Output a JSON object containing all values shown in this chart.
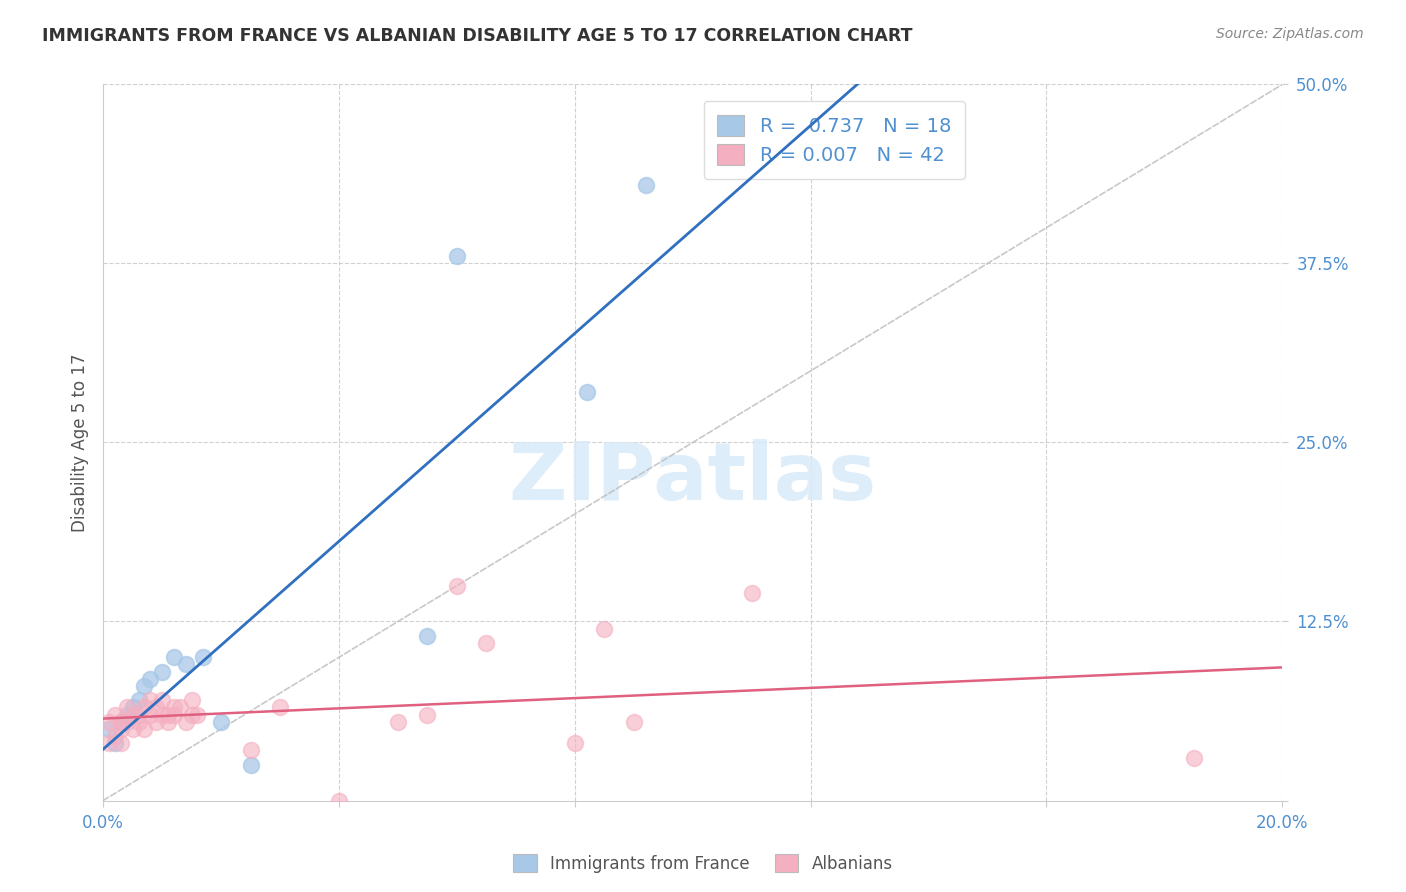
{
  "title": "IMMIGRANTS FROM FRANCE VS ALBANIAN DISABILITY AGE 5 TO 17 CORRELATION CHART",
  "source": "Source: ZipAtlas.com",
  "ylabel": "Disability Age 5 to 17",
  "xlim": [
    0,
    0.2
  ],
  "ylim": [
    0,
    0.5
  ],
  "legend1_r": "0.737",
  "legend1_n": "18",
  "legend2_r": "0.007",
  "legend2_n": "42",
  "france_color": "#a8c8e8",
  "albania_color": "#f4afc0",
  "france_line_color": "#3070c0",
  "albania_line_color": "#e06080",
  "ref_line_color": "#bbbbbb",
  "watermark_color": "#d8eaf8",
  "tick_color": "#5090d0",
  "grid_color": "#cccccc",
  "title_color": "#333333",
  "source_color": "#888888",
  "ylabel_color": "#555555",
  "background_color": "#ffffff",
  "france_x": [
    0.001,
    0.002,
    0.003,
    0.004,
    0.005,
    0.006,
    0.007,
    0.008,
    0.01,
    0.012,
    0.014,
    0.017,
    0.02,
    0.025,
    0.055,
    0.06,
    0.082,
    0.092
  ],
  "france_y": [
    0.05,
    0.04,
    0.055,
    0.06,
    0.065,
    0.07,
    0.08,
    0.085,
    0.09,
    0.1,
    0.095,
    0.1,
    0.055,
    0.025,
    0.115,
    0.38,
    0.285,
    0.43
  ],
  "albania_x": [
    0.001,
    0.001,
    0.002,
    0.002,
    0.003,
    0.003,
    0.003,
    0.004,
    0.004,
    0.005,
    0.005,
    0.006,
    0.006,
    0.007,
    0.007,
    0.008,
    0.008,
    0.009,
    0.009,
    0.01,
    0.01,
    0.011,
    0.011,
    0.012,
    0.012,
    0.013,
    0.014,
    0.015,
    0.015,
    0.016,
    0.025,
    0.03,
    0.04,
    0.05,
    0.055,
    0.06,
    0.065,
    0.08,
    0.085,
    0.09,
    0.11,
    0.185
  ],
  "albania_y": [
    0.055,
    0.04,
    0.06,
    0.045,
    0.055,
    0.05,
    0.04,
    0.065,
    0.055,
    0.06,
    0.05,
    0.06,
    0.055,
    0.065,
    0.05,
    0.07,
    0.06,
    0.065,
    0.055,
    0.07,
    0.06,
    0.06,
    0.055,
    0.065,
    0.06,
    0.065,
    0.055,
    0.07,
    0.06,
    0.06,
    0.035,
    0.065,
    0.0,
    0.055,
    0.06,
    0.15,
    0.11,
    0.04,
    0.12,
    0.055,
    0.145,
    0.03
  ],
  "bottom_legend_france": "Immigrants from France",
  "bottom_legend_albania": "Albanians"
}
